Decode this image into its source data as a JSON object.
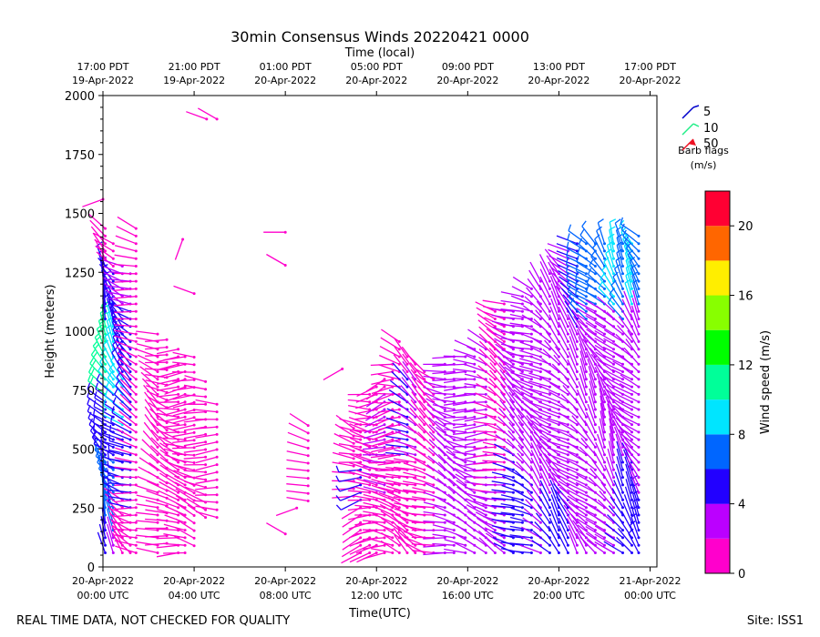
{
  "chart_data": {
    "type": "wind_barb_profile",
    "title": "30min Consensus Winds 20220421 0000",
    "top_axis_label": "Time (local)",
    "xlabel": "Time(UTC)",
    "ylabel": "Height (meters)",
    "ylim": [
      0,
      2000
    ],
    "xlim_hours": [
      0,
      24.3
    ],
    "y_ticks": [
      0,
      250,
      500,
      750,
      1000,
      1250,
      1500,
      1750,
      2000
    ],
    "x_ticks": [
      {
        "h": 0,
        "line1": "20-Apr-2022",
        "line2": "00:00 UTC"
      },
      {
        "h": 4,
        "line1": "20-Apr-2022",
        "line2": "04:00 UTC"
      },
      {
        "h": 8,
        "line1": "20-Apr-2022",
        "line2": "08:00 UTC"
      },
      {
        "h": 12,
        "line1": "20-Apr-2022",
        "line2": "12:00 UTC"
      },
      {
        "h": 16,
        "line1": "20-Apr-2022",
        "line2": "16:00 UTC"
      },
      {
        "h": 20,
        "line1": "20-Apr-2022",
        "line2": "20:00 UTC"
      },
      {
        "h": 24,
        "line1": "21-Apr-2022",
        "line2": "00:00 UTC"
      }
    ],
    "top_ticks": [
      {
        "h": 0,
        "line1": "17:00 PDT",
        "line2": "19-Apr-2022"
      },
      {
        "h": 4,
        "line1": "21:00 PDT",
        "line2": "19-Apr-2022"
      },
      {
        "h": 8,
        "line1": "01:00 PDT",
        "line2": "20-Apr-2022"
      },
      {
        "h": 12,
        "line1": "05:00 PDT",
        "line2": "20-Apr-2022"
      },
      {
        "h": 16,
        "line1": "09:00 PDT",
        "line2": "20-Apr-2022"
      },
      {
        "h": 20,
        "line1": "13:00 PDT",
        "line2": "20-Apr-2022"
      },
      {
        "h": 24,
        "line1": "17:00 PDT",
        "line2": "20-Apr-2022"
      }
    ],
    "barb_legend": {
      "entries": [
        {
          "label": "5",
          "color": "#0000cc"
        },
        {
          "label": "10",
          "color": "#22ee88"
        },
        {
          "label": "50",
          "color": "#ee1122"
        }
      ],
      "caption": "Barb flags",
      "units": "(m/s)"
    },
    "colorbar": {
      "label": "Wind speed (m/s)",
      "range": [
        0,
        22
      ],
      "tick_values": [
        0,
        4,
        8,
        12,
        16,
        20
      ],
      "bins": [
        {
          "from": 0,
          "to": 2,
          "color": "#ff00cc"
        },
        {
          "from": 2,
          "to": 4,
          "color": "#bb00ff"
        },
        {
          "from": 4,
          "to": 6,
          "color": "#2200ff"
        },
        {
          "from": 6,
          "to": 8,
          "color": "#0066ff"
        },
        {
          "from": 8,
          "to": 10,
          "color": "#00e5ff"
        },
        {
          "from": 10,
          "to": 12,
          "color": "#00ff99"
        },
        {
          "from": 12,
          "to": 14,
          "color": "#00ff00"
        },
        {
          "from": 14,
          "to": 16,
          "color": "#88ff00"
        },
        {
          "from": 16,
          "to": 18,
          "color": "#ffee00"
        },
        {
          "from": 18,
          "to": 20,
          "color": "#ff6600"
        },
        {
          "from": 20,
          "to": 22,
          "color": "#ff0033"
        }
      ]
    },
    "profiles": [
      {
        "h": 0.1,
        "bottom": 60,
        "top": 1450,
        "from": 330,
        "speed": [
          [
            "0-200",
            4
          ],
          [
            "200-450",
            7
          ],
          [
            "450-700",
            5
          ],
          [
            "700-1050",
            10
          ],
          [
            "1050-1300",
            5
          ],
          [
            "1300-1450",
            1
          ]
        ]
      },
      {
        "h": 0.45,
        "bottom": 60,
        "top": 1400,
        "from": 320,
        "speed": [
          [
            "0-150",
            2
          ],
          [
            "150-450",
            6
          ],
          [
            "450-750",
            5
          ],
          [
            "750-1050",
            9
          ],
          [
            "1050-1250",
            4
          ],
          [
            "1250-1400",
            1
          ]
        ]
      },
      {
        "h": 0.85,
        "bottom": 60,
        "top": 1300,
        "from": 310,
        "speed": [
          [
            "0-300",
            1
          ],
          [
            "300-600",
            5
          ],
          [
            "600-800",
            9
          ],
          [
            "800-1100",
            5
          ],
          [
            "1100-1300",
            3
          ]
        ]
      },
      {
        "h": 1.2,
        "bottom": 60,
        "top": 1250,
        "from": 300,
        "speed": [
          [
            "0-250",
            1
          ],
          [
            "250-1100",
            5
          ],
          [
            "1100-1250",
            2
          ]
        ]
      },
      {
        "h": 1.45,
        "bottom": 60,
        "top": 1450,
        "from": 290,
        "speed": [
          [
            "0-1450",
            1
          ]
        ]
      },
      {
        "h": 2.4,
        "bottom": 60,
        "top": 1000,
        "from": 300,
        "speed": [
          [
            "0-1000",
            1
          ]
        ]
      },
      {
        "h": 2.8,
        "bottom": 100,
        "top": 980,
        "from": 290,
        "speed": [
          [
            "0-980",
            1
          ]
        ]
      },
      {
        "h": 3.3,
        "bottom": 60,
        "top": 930,
        "from": 280,
        "speed": [
          [
            "0-930",
            1
          ]
        ]
      },
      {
        "h": 3.6,
        "bottom": 60,
        "top": 900,
        "from": 275,
        "speed": [
          [
            "0-900",
            1
          ]
        ]
      },
      {
        "h": 4.0,
        "bottom": 90,
        "top": 920,
        "from": 280,
        "speed": [
          [
            "0-920",
            1
          ]
        ]
      },
      {
        "h": 4.5,
        "bottom": 210,
        "top": 800,
        "from": 285,
        "speed": [
          [
            "0-800",
            1
          ]
        ]
      },
      {
        "h": 5.0,
        "bottom": 210,
        "top": 700,
        "from": 280,
        "speed": [
          [
            "0-700",
            1
          ]
        ]
      },
      {
        "h": 9.0,
        "bottom": 280,
        "top": 600,
        "from": 300,
        "speed": [
          [
            "0-600",
            1
          ]
        ]
      },
      {
        "h": 11.0,
        "bottom": 300,
        "top": 600,
        "from": 290,
        "speed": [
          [
            "0-600",
            1
          ]
        ]
      },
      {
        "h": 11.3,
        "bottom": 60,
        "top": 620,
        "from": 260,
        "speed": [
          [
            "0-60",
            1
          ],
          [
            "260-420",
            5
          ],
          [
            "420-620",
            1
          ]
        ]
      },
      {
        "h": 11.7,
        "bottom": 60,
        "top": 760,
        "from": 270,
        "speed": [
          [
            "0-760",
            1
          ]
        ]
      },
      {
        "h": 12.0,
        "bottom": 60,
        "top": 780,
        "from": 265,
        "speed": [
          [
            "0-780",
            1
          ]
        ]
      },
      {
        "h": 12.35,
        "bottom": 60,
        "top": 800,
        "from": 260,
        "speed": [
          [
            "0-300",
            1
          ],
          [
            "300-750",
            3
          ],
          [
            "750-800",
            1
          ]
        ]
      },
      {
        "h": 12.7,
        "bottom": 60,
        "top": 860,
        "from": 270,
        "speed": [
          [
            "0-860",
            1
          ]
        ]
      },
      {
        "h": 13.0,
        "bottom": 60,
        "top": 960,
        "from": 280,
        "speed": [
          [
            "0-960",
            1
          ]
        ]
      },
      {
        "h": 13.35,
        "bottom": 60,
        "top": 920,
        "from": 300,
        "speed": [
          [
            "0-450",
            1
          ],
          [
            "450-800",
            4
          ],
          [
            "800-920",
            1
          ]
        ]
      },
      {
        "h": 13.7,
        "bottom": 60,
        "top": 860,
        "from": 300,
        "speed": [
          [
            "0-450",
            1
          ],
          [
            "450-800",
            3
          ],
          [
            "800-860",
            1
          ]
        ]
      },
      {
        "h": 14.1,
        "bottom": 60,
        "top": 840,
        "from": 300,
        "speed": [
          [
            "0-840",
            1
          ]
        ]
      },
      {
        "h": 14.5,
        "bottom": 60,
        "top": 820,
        "from": 295,
        "speed": [
          [
            "0-840",
            1
          ]
        ]
      },
      {
        "h": 15.0,
        "bottom": 60,
        "top": 880,
        "from": 290,
        "speed": [
          [
            "0-880",
            2
          ]
        ]
      },
      {
        "h": 15.4,
        "bottom": 60,
        "top": 900,
        "from": 290,
        "speed": [
          [
            "0-880",
            2
          ]
        ]
      },
      {
        "h": 15.9,
        "bottom": 60,
        "top": 900,
        "from": 285,
        "speed": [
          [
            "0-900",
            2
          ]
        ]
      },
      {
        "h": 16.3,
        "bottom": 60,
        "top": 940,
        "from": 285,
        "speed": [
          [
            "0-940",
            2
          ]
        ]
      },
      {
        "h": 16.8,
        "bottom": 60,
        "top": 960,
        "from": 280,
        "speed": [
          [
            "0-960",
            2
          ]
        ]
      },
      {
        "h": 17.2,
        "bottom": 60,
        "top": 1100,
        "from": 290,
        "speed": [
          [
            "0-300",
            3
          ],
          [
            "300-1100",
            1
          ]
        ]
      },
      {
        "h": 17.6,
        "bottom": 60,
        "top": 1120,
        "from": 295,
        "speed": [
          [
            "0-400",
            3
          ],
          [
            "400-1120",
            1
          ]
        ]
      },
      {
        "h": 18.0,
        "bottom": 60,
        "top": 1100,
        "from": 300,
        "speed": [
          [
            "0-500",
            4
          ],
          [
            "500-1100",
            2
          ]
        ]
      },
      {
        "h": 18.4,
        "bottom": 60,
        "top": 1150,
        "from": 300,
        "speed": [
          [
            "0-400",
            4
          ],
          [
            "400-1150",
            2
          ]
        ]
      },
      {
        "h": 18.8,
        "bottom": 60,
        "top": 1200,
        "from": 300,
        "speed": [
          [
            "0-350",
            4
          ],
          [
            "350-1200",
            2
          ]
        ]
      },
      {
        "h": 19.2,
        "bottom": 60,
        "top": 1220,
        "from": 310,
        "speed": [
          [
            "0-350",
            3
          ],
          [
            "350-1220",
            2
          ]
        ]
      },
      {
        "h": 19.6,
        "bottom": 60,
        "top": 1260,
        "from": 310,
        "speed": [
          [
            "0-300",
            4
          ],
          [
            "300-800",
            2
          ],
          [
            "800-1260",
            3
          ]
        ]
      },
      {
        "h": 20.0,
        "bottom": 60,
        "top": 1300,
        "from": 315,
        "speed": [
          [
            "0-300",
            4
          ],
          [
            "300-800",
            2
          ],
          [
            "800-1300",
            3
          ]
        ]
      },
      {
        "h": 20.4,
        "bottom": 60,
        "top": 1350,
        "from": 310,
        "speed": [
          [
            "0-300",
            4
          ],
          [
            "300-1000",
            2
          ],
          [
            "1000-1350",
            3
          ]
        ]
      },
      {
        "h": 20.8,
        "bottom": 60,
        "top": 1380,
        "from": 315,
        "speed": [
          [
            "0-300",
            3
          ],
          [
            "300-1000",
            2
          ],
          [
            "1000-1380",
            4
          ]
        ]
      },
      {
        "h": 21.2,
        "bottom": 60,
        "top": 1380,
        "from": 320,
        "speed": [
          [
            "0-400",
            3
          ],
          [
            "400-1050",
            2
          ],
          [
            "1050-1380",
            6
          ]
        ]
      },
      {
        "h": 21.6,
        "bottom": 60,
        "top": 1400,
        "from": 320,
        "speed": [
          [
            "0-400",
            3
          ],
          [
            "400-1100",
            2
          ],
          [
            "1100-1400",
            7
          ]
        ]
      },
      {
        "h": 22.0,
        "bottom": 60,
        "top": 1380,
        "from": 325,
        "speed": [
          [
            "0-450",
            3
          ],
          [
            "450-1100",
            2
          ],
          [
            "1100-1380",
            6
          ]
        ]
      },
      {
        "h": 22.4,
        "bottom": 60,
        "top": 1400,
        "from": 325,
        "speed": [
          [
            "0-450",
            3
          ],
          [
            "450-1100",
            2
          ],
          [
            "1100-1400",
            8
          ]
        ]
      },
      {
        "h": 22.8,
        "bottom": 60,
        "top": 1380,
        "from": 320,
        "speed": [
          [
            "0-450",
            4
          ],
          [
            "450-1050",
            2
          ],
          [
            "1050-1380",
            7
          ]
        ]
      },
      {
        "h": 23.2,
        "bottom": 60,
        "top": 1400,
        "from": 320,
        "speed": [
          [
            "0-450",
            4
          ],
          [
            "450-1100",
            2
          ],
          [
            "1100-1400",
            8
          ]
        ]
      },
      {
        "h": 23.5,
        "bottom": 60,
        "top": 1420,
        "from": 320,
        "speed": [
          [
            "0-300",
            5
          ],
          [
            "300-1100",
            2
          ],
          [
            "1100-1420",
            7
          ]
        ]
      }
    ],
    "isolated_barbs": [
      {
        "h": 4.55,
        "z": 1900,
        "from": 290,
        "speed": 1
      },
      {
        "h": 5.0,
        "z": 1900,
        "from": 300,
        "speed": 1
      },
      {
        "h": 3.5,
        "z": 1390,
        "from": 200,
        "speed": 1
      },
      {
        "h": 8.0,
        "z": 1420,
        "from": 270,
        "speed": 1
      },
      {
        "h": 8.0,
        "z": 1280,
        "from": 300,
        "speed": 1
      },
      {
        "h": 4.0,
        "z": 1160,
        "from": 290,
        "speed": 1
      },
      {
        "h": 10.5,
        "z": 840,
        "from": 240,
        "speed": 1
      },
      {
        "h": 8.0,
        "z": 140,
        "from": 300,
        "speed": 1
      },
      {
        "h": 8.5,
        "z": 250,
        "from": 250,
        "speed": 1
      },
      {
        "h": 0.0,
        "z": 1560,
        "from": 250,
        "speed": 1
      }
    ]
  },
  "footer": {
    "note": "REAL TIME DATA, NOT CHECKED FOR QUALITY",
    "site": "Site: ISS1"
  }
}
